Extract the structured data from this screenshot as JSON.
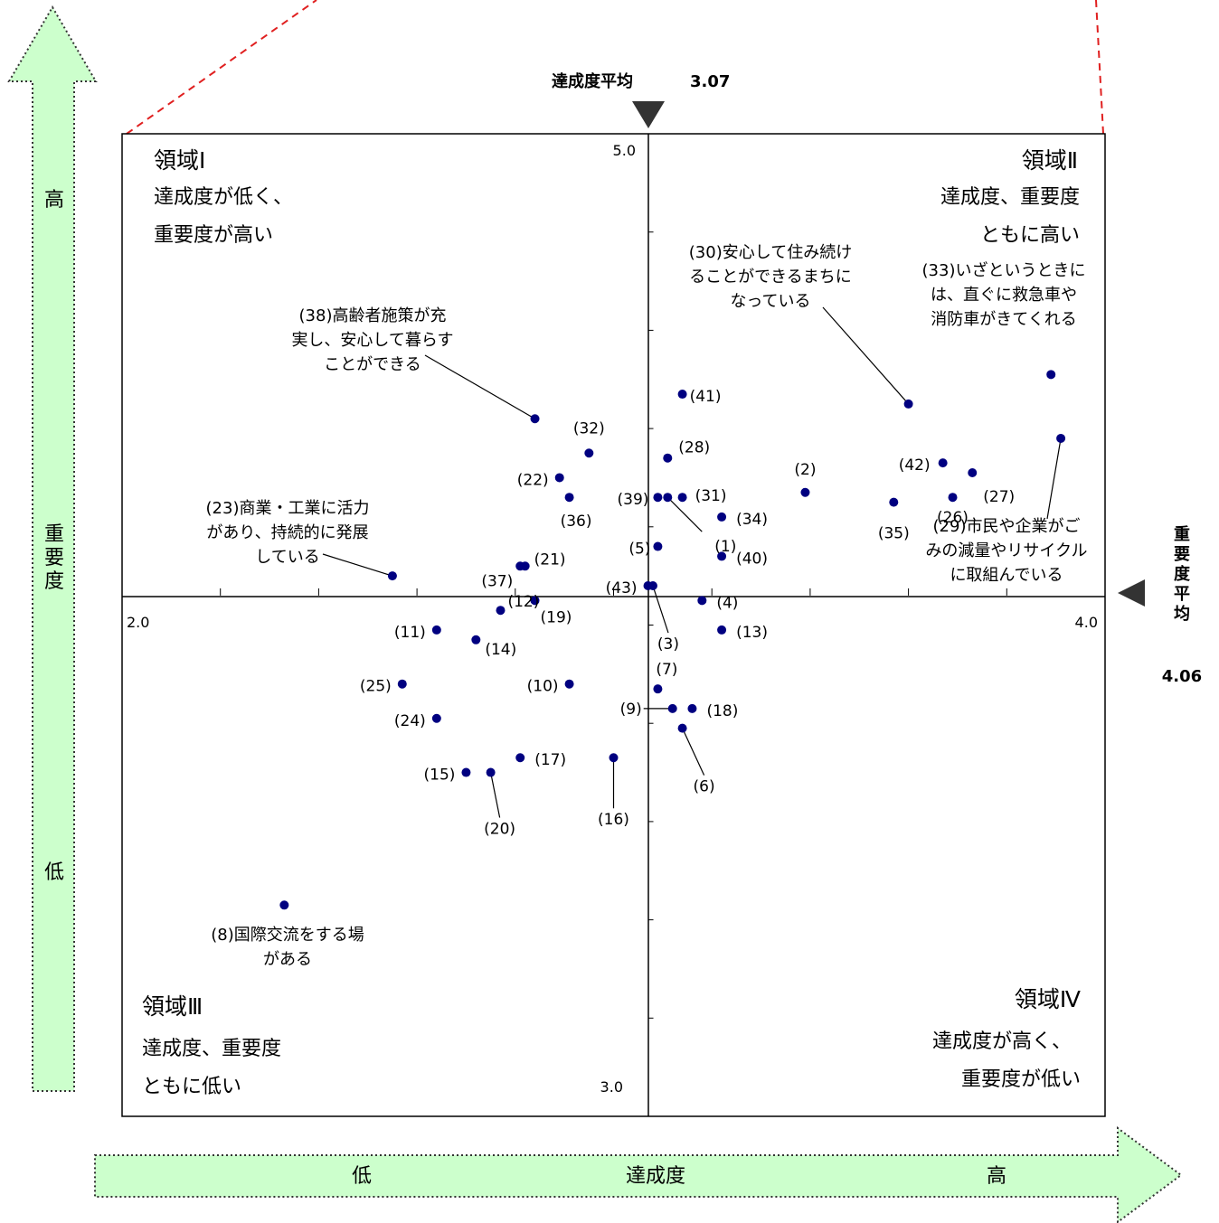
{
  "chart_data": {
    "type": "scatter",
    "xlabel": "達成度",
    "ylabel": "重要度",
    "x_low_label": "低",
    "x_high_label": "高",
    "y_high_label": "高",
    "y_low_label": "低",
    "xlim": [
      2.0,
      4.0
    ],
    "ylim": [
      3.0,
      5.0
    ],
    "x_tick_labels": [
      "2.0",
      "4.0"
    ],
    "y_tick_labels": [
      "5.0",
      "3.0"
    ],
    "x_average": {
      "label": "達成度平均",
      "value": "3.07"
    },
    "y_average": {
      "label": "重要度平均",
      "value": "4.06"
    },
    "quadrants": [
      {
        "id": "q1",
        "title": "領域Ⅰ",
        "line1": "達成度が低く、",
        "line2": "重要度が高い"
      },
      {
        "id": "q2",
        "title": "領域Ⅱ",
        "line1": "達成度、重要度",
        "line2": "ともに高い"
      },
      {
        "id": "q3",
        "title": "領域Ⅲ",
        "line1": "達成度、重要度",
        "line2": "ともに低い"
      },
      {
        "id": "q4",
        "title": "領域Ⅳ",
        "line1": "達成度が高く、",
        "line2": "重要度が低い"
      }
    ],
    "points": [
      {
        "label": "(1)",
        "x": 3.11,
        "y": 4.26
      },
      {
        "label": "(2)",
        "x": 3.39,
        "y": 4.27
      },
      {
        "label": "(3)",
        "x": 3.08,
        "y": 4.08
      },
      {
        "label": "(4)",
        "x": 3.18,
        "y": 4.05
      },
      {
        "label": "(5)",
        "x": 3.09,
        "y": 4.16
      },
      {
        "label": "(6)",
        "x": 3.14,
        "y": 3.79
      },
      {
        "label": "(7)",
        "x": 3.09,
        "y": 3.87
      },
      {
        "label": "(8)",
        "x": 2.33,
        "y": 3.43
      },
      {
        "label": "(9)",
        "x": 3.12,
        "y": 3.83
      },
      {
        "label": "(10)",
        "x": 2.91,
        "y": 3.88
      },
      {
        "label": "(11)",
        "x": 2.64,
        "y": 3.99
      },
      {
        "label": "(12)",
        "x": 2.77,
        "y": 4.03
      },
      {
        "label": "(13)",
        "x": 3.22,
        "y": 3.99
      },
      {
        "label": "(14)",
        "x": 2.72,
        "y": 3.97
      },
      {
        "label": "(15)",
        "x": 2.7,
        "y": 3.7
      },
      {
        "label": "(16)",
        "x": 3.0,
        "y": 3.73
      },
      {
        "label": "(17)",
        "x": 2.81,
        "y": 3.73
      },
      {
        "label": "(18)",
        "x": 3.16,
        "y": 3.83
      },
      {
        "label": "(19)",
        "x": 2.84,
        "y": 4.05
      },
      {
        "label": "(20)",
        "x": 2.75,
        "y": 3.7
      },
      {
        "label": "(21)",
        "x": 2.82,
        "y": 4.12
      },
      {
        "label": "(22)",
        "x": 2.89,
        "y": 4.3
      },
      {
        "label": "(23)商業・工業に活力があり、持続的に発展している",
        "x": 2.55,
        "y": 4.1
      },
      {
        "label": "(24)",
        "x": 2.64,
        "y": 3.81
      },
      {
        "label": "(25)",
        "x": 2.57,
        "y": 3.88
      },
      {
        "label": "(26)",
        "x": 3.69,
        "y": 4.26
      },
      {
        "label": "(27)",
        "x": 3.73,
        "y": 4.31
      },
      {
        "label": "(28)",
        "x": 3.11,
        "y": 4.34
      },
      {
        "label": "(29)市民や企業がごみの減量やリサイクルに取組んでいる",
        "x": 3.91,
        "y": 4.38
      },
      {
        "label": "(30)安心して住み続けることができるまちになっている",
        "x": 3.6,
        "y": 4.45
      },
      {
        "label": "(31)",
        "x": 3.14,
        "y": 4.26
      },
      {
        "label": "(32)",
        "x": 2.95,
        "y": 4.35
      },
      {
        "label": "(33)いざというときには、直ぐに救急車や消防車がきてくれる",
        "x": 3.89,
        "y": 4.51
      },
      {
        "label": "(34)",
        "x": 3.22,
        "y": 4.22
      },
      {
        "label": "(35)",
        "x": 3.57,
        "y": 4.25
      },
      {
        "label": "(36)",
        "x": 2.91,
        "y": 4.26
      },
      {
        "label": "(37)",
        "x": 2.81,
        "y": 4.12
      },
      {
        "label": "(38)高齢者施策が充実し、安心して暮らすことができる",
        "x": 2.84,
        "y": 4.42
      },
      {
        "label": "(39)",
        "x": 3.09,
        "y": 4.26
      },
      {
        "label": "(40)",
        "x": 3.22,
        "y": 4.14
      },
      {
        "label": "(41)",
        "x": 3.14,
        "y": 4.47
      },
      {
        "label": "(42)",
        "x": 3.67,
        "y": 4.33
      },
      {
        "label": "(43)",
        "x": 3.07,
        "y": 4.08
      }
    ]
  }
}
